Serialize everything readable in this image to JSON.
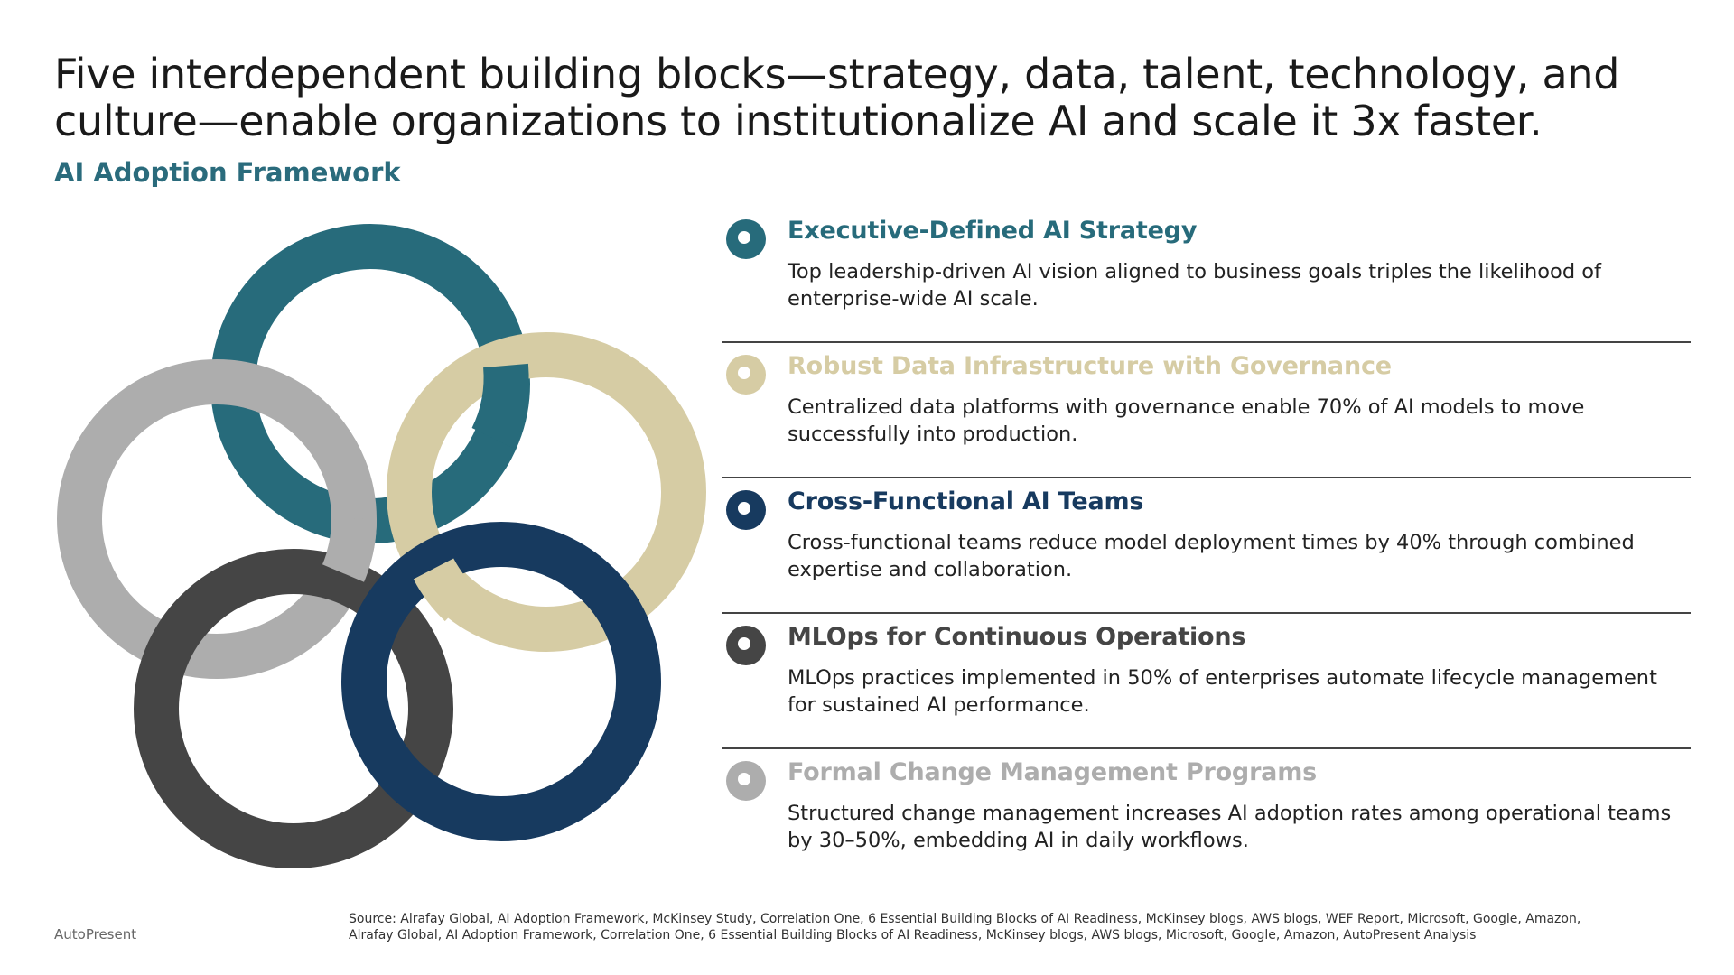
{
  "header": {
    "title": "Five interdependent building blocks—strategy, data, talent, technology, and culture—enable organizations to institutionalize AI and scale it 3x faster.",
    "subtitle": "AI Adoption Framework"
  },
  "items": [
    {
      "title": "Executive-Defined AI Strategy",
      "description": "Top leadership-driven AI vision aligned to business goals triples the likelihood of enterprise-wide AI scale.",
      "color": "#276b7b"
    },
    {
      "title": "Robust Data Infrastructure with Governance",
      "description": "Centralized data platforms with governance enable 70% of AI models to move successfully into production.",
      "color": "#d6cca4"
    },
    {
      "title": "Cross-Functional AI Teams",
      "description": "Cross-functional teams reduce model deployment times by 40% through combined expertise and collaboration.",
      "color": "#173a5f"
    },
    {
      "title": "MLOps for Continuous Operations",
      "description": "MLOps practices implemented in 50% of enterprises automate lifecycle management for sustained AI performance.",
      "color": "#454545"
    },
    {
      "title": "Formal Change Management Programs",
      "description": "Structured change management increases AI adoption rates among operational teams by 30–50%, embedding AI in daily workflows.",
      "color": "#adadad"
    }
  ],
  "footer": {
    "brand": "AutoPresent",
    "source_line1": "Source: Alrafay Global, AI Adoption Framework, McKinsey Study, Correlation One, 6 Essential Building Blocks of AI Readiness, McKinsey blogs, AWS blogs, WEF Report, Microsoft, Google, Amazon,",
    "source_line2": "Alrafay Global, AI Adoption Framework, Correlation One, 6 Essential Building Blocks of AI Readiness, McKinsey blogs, AWS blogs, Microsoft, Google, Amazon, AutoPresent Analysis"
  }
}
